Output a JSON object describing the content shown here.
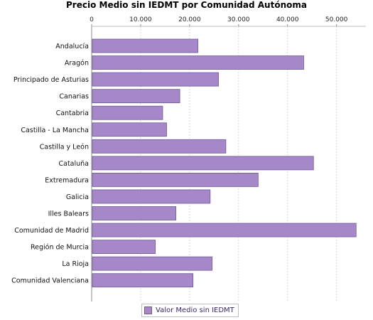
{
  "chart_data": {
    "type": "bar",
    "orientation": "horizontal",
    "title": "Precio Medio sin IEDMT por Comunidad Autónoma",
    "categories": [
      "Andalucía",
      "Aragón",
      "Principado de Asturias",
      "Canarias",
      "Cantabria",
      "Castilla - La Mancha",
      "Castilla y León",
      "Cataluña",
      "Extremadura",
      "Galicia",
      "Illes Balears",
      "Comunidad de Madrid",
      "Región de Murcia",
      "La Rioja",
      "Comunidad Valenciana"
    ],
    "series": [
      {
        "name": "Valor Medio sin IEDMT",
        "values": [
          21700,
          43300,
          25900,
          18000,
          14500,
          15300,
          27400,
          45300,
          34000,
          24200,
          17200,
          54000,
          13000,
          24600,
          20700
        ]
      }
    ],
    "xlim": [
      0,
      56000
    ],
    "x_ticks": [
      "0",
      "10.000",
      "20.000",
      "30.000",
      "40.000",
      "50.000"
    ],
    "x_tick_values": [
      0,
      10000,
      20000,
      30000,
      40000,
      50000
    ],
    "x_axis_position": "top",
    "grid": "vertical dashed",
    "legend_position": "bottom",
    "colors": {
      "bar_fill": "#a687c8",
      "bar_stroke": "#6f5a98",
      "grid": "#d9d9d9",
      "axis": "#888888"
    }
  }
}
